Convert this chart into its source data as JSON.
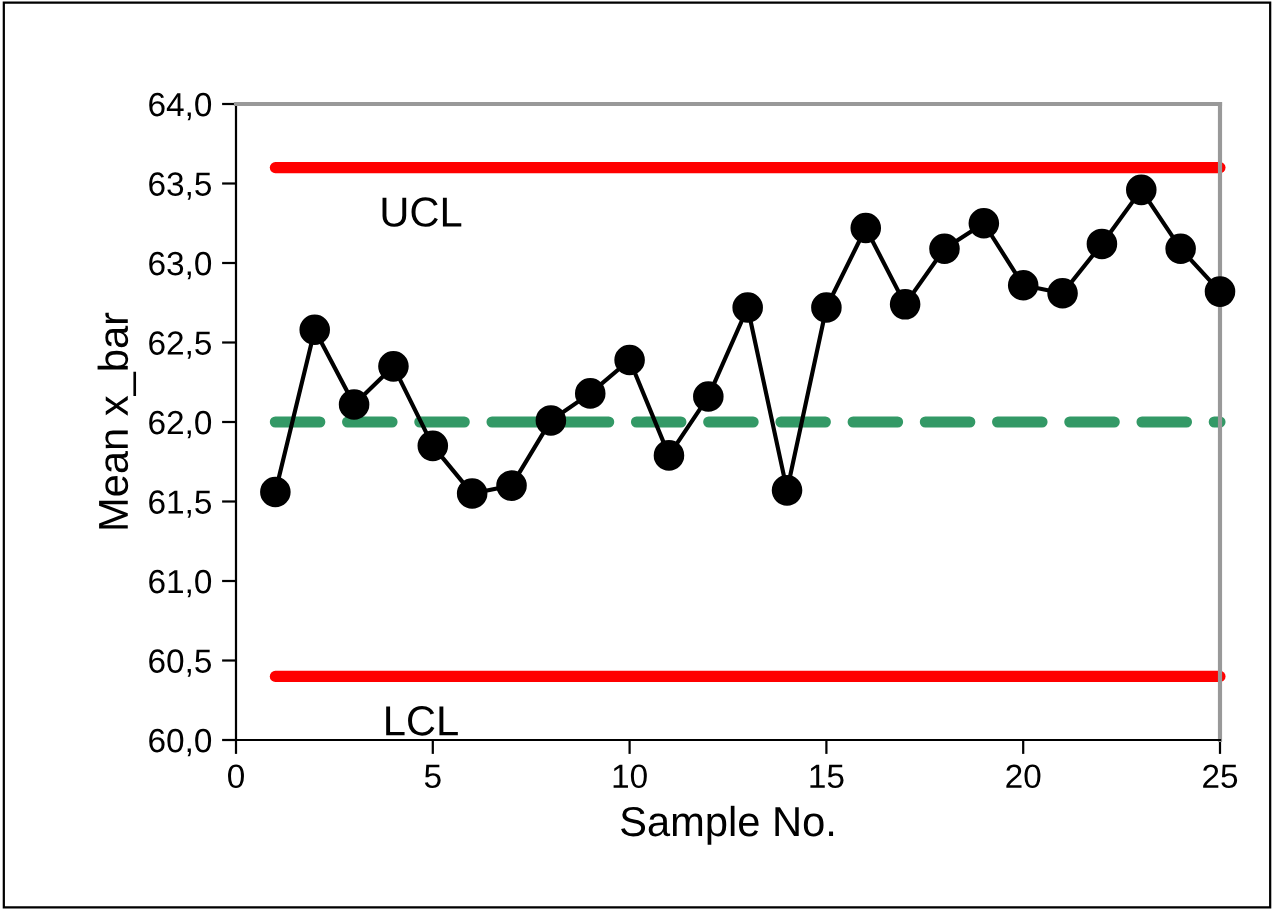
{
  "chart_data": {
    "type": "line",
    "xlabel": "Sample No.",
    "ylabel": "Mean x_bar",
    "x": [
      1,
      2,
      3,
      4,
      5,
      6,
      7,
      8,
      9,
      10,
      11,
      12,
      13,
      14,
      15,
      16,
      17,
      18,
      19,
      20,
      21,
      22,
      23,
      24,
      25
    ],
    "series": [
      {
        "color": "#000000",
        "values": [
          61.56,
          62.58,
          62.11,
          62.35,
          61.85,
          61.55,
          61.6,
          62.01,
          62.18,
          62.39,
          61.79,
          62.16,
          62.72,
          61.57,
          62.72,
          63.22,
          62.74,
          63.09,
          63.25,
          62.86,
          62.81,
          63.12,
          63.46,
          63.09,
          62.82
        ]
      }
    ],
    "marker": "circle",
    "line_style": "solid",
    "grid": false,
    "legend": false,
    "xlim": [
      0,
      25
    ],
    "xticks": [
      0,
      5,
      10,
      15,
      20,
      25
    ],
    "ylim": [
      60,
      64
    ],
    "yticks": [
      {
        "value": 60,
        "label": "60,0"
      },
      {
        "value": 60.5,
        "label": "60,5"
      },
      {
        "value": 61,
        "label": "61,0"
      },
      {
        "value": 61.5,
        "label": "61,5"
      },
      {
        "value": 62,
        "label": "62,0"
      },
      {
        "value": 62.5,
        "label": "62,5"
      },
      {
        "value": 63,
        "label": "63,0"
      },
      {
        "value": 63.5,
        "label": "63,5"
      },
      {
        "value": 64,
        "label": "64,0"
      }
    ],
    "ref_lines": [
      {
        "axis": "y",
        "value": 63.6,
        "label": "UCL",
        "color": "#ff0000",
        "line_style": "solid"
      },
      {
        "axis": "y",
        "value": 60.4,
        "label": "LCL",
        "color": "#ff0000",
        "line_style": "solid"
      },
      {
        "axis": "y",
        "value": 62.0,
        "color": "#339966",
        "line_style": "dashed"
      }
    ]
  }
}
